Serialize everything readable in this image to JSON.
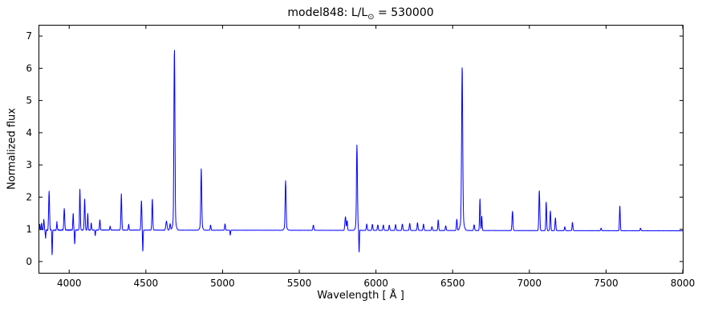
{
  "figure": {
    "title": {
      "prefix": "model848: L/L",
      "sub": "⊙",
      "suffix": " = 530000"
    },
    "xlabel": "Wavelength [ Å ]",
    "ylabel": "Normalized flux"
  },
  "chart_data": {
    "type": "line",
    "title": "model848: L/L⊙ = 530000",
    "xlabel": "Wavelength [ Å ]",
    "ylabel": "Normalized flux",
    "xlim": [
      3800,
      8000
    ],
    "ylim": [
      -0.35,
      7.35
    ],
    "xticks": [
      4000,
      4500,
      5000,
      5500,
      6000,
      6500,
      7000,
      7500,
      8000
    ],
    "yticks": [
      0,
      1,
      2,
      3,
      4,
      5,
      6,
      7
    ],
    "line_color": "#0000ff",
    "axis_color": "#000000",
    "background": "#ffffff",
    "grid": false,
    "legend": false,
    "continuum": {
      "base": 0.98,
      "slope": -6e-06
    },
    "noise": {
      "amp": 0.022,
      "decay": 250,
      "floor": 0.003
    },
    "emission_lines": [
      [
        3808,
        0.18,
        2.0
      ],
      [
        3820,
        0.22,
        2.0
      ],
      [
        3835,
        0.33,
        2.0
      ],
      [
        3869,
        1.2,
        2.8
      ],
      [
        3920,
        0.25,
        2.2
      ],
      [
        3968,
        0.66,
        2.8
      ],
      [
        4026,
        0.52,
        2.2
      ],
      [
        4070,
        1.27,
        2.4
      ],
      [
        4101,
        0.98,
        2.8
      ],
      [
        4121,
        0.52,
        2.2
      ],
      [
        4144,
        0.22,
        2.2
      ],
      [
        4200,
        0.32,
        2.5
      ],
      [
        4267,
        0.12,
        2.2
      ],
      [
        4340,
        1.12,
        2.8
      ],
      [
        4388,
        0.18,
        2.2
      ],
      [
        4471,
        0.92,
        2.6
      ],
      [
        4542,
        0.97,
        2.8
      ],
      [
        4634,
        0.28,
        4.0
      ],
      [
        4658,
        0.2,
        3.0
      ],
      [
        4686,
        5.3,
        3.2
      ],
      [
        4686,
        0.35,
        9.0
      ],
      [
        4861,
        1.78,
        3.0
      ],
      [
        4861,
        0.15,
        8.0
      ],
      [
        4922,
        0.16,
        2.5
      ],
      [
        5016,
        0.2,
        2.5
      ],
      [
        5411,
        1.42,
        3.0
      ],
      [
        5411,
        0.12,
        8.0
      ],
      [
        5592,
        0.16,
        3.0
      ],
      [
        5801,
        0.42,
        3.5
      ],
      [
        5812,
        0.3,
        2.5
      ],
      [
        5876,
        2.45,
        3.0
      ],
      [
        5876,
        0.2,
        8.0
      ],
      [
        5940,
        0.2,
        2.8
      ],
      [
        5977,
        0.19,
        2.8
      ],
      [
        6012,
        0.17,
        2.8
      ],
      [
        6048,
        0.17,
        2.8
      ],
      [
        6087,
        0.17,
        2.8
      ],
      [
        6128,
        0.18,
        2.8
      ],
      [
        6172,
        0.2,
        2.8
      ],
      [
        6220,
        0.22,
        2.8
      ],
      [
        6271,
        0.24,
        2.8
      ],
      [
        6310,
        0.2,
        2.8
      ],
      [
        6365,
        0.12,
        2.8
      ],
      [
        6406,
        0.33,
        2.6
      ],
      [
        6455,
        0.15,
        2.6
      ],
      [
        6527,
        0.35,
        2.6
      ],
      [
        6562,
        4.7,
        3.5
      ],
      [
        6562,
        0.4,
        10.0
      ],
      [
        6640,
        0.18,
        3.0
      ],
      [
        6678,
        1.0,
        2.6
      ],
      [
        6690,
        0.45,
        2.2
      ],
      [
        6890,
        0.6,
        3.0
      ],
      [
        7065,
        1.25,
        3.0
      ],
      [
        7110,
        0.9,
        2.6
      ],
      [
        7137,
        0.62,
        2.6
      ],
      [
        7170,
        0.4,
        2.6
      ],
      [
        7231,
        0.12,
        2.5
      ],
      [
        7281,
        0.26,
        2.6
      ],
      [
        7468,
        0.08,
        2.5
      ],
      [
        7590,
        0.78,
        2.4
      ],
      [
        7725,
        0.08,
        2.5
      ]
    ],
    "absorption_lines": [
      [
        3846,
        0.25,
        1.8
      ],
      [
        3889,
        0.8,
        1.8
      ],
      [
        4036,
        0.44,
        1.8
      ],
      [
        4170,
        0.18,
        1.8
      ],
      [
        4480,
        0.68,
        1.8
      ],
      [
        5050,
        0.16,
        1.8
      ],
      [
        5890,
        0.75,
        1.8
      ]
    ]
  }
}
